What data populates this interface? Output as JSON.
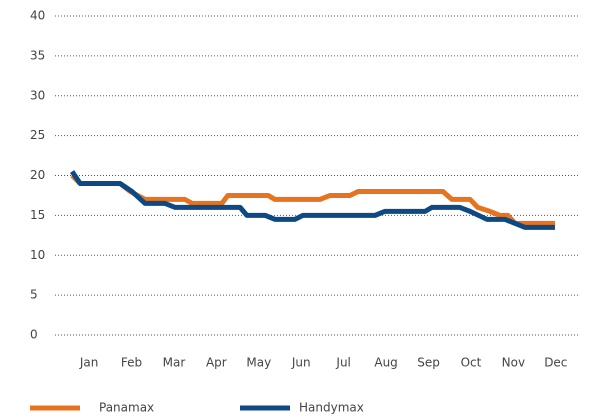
{
  "chart_data": {
    "type": "line",
    "xlim": [
      0.15,
      12.57
    ],
    "xticks": [
      {
        "value": 1,
        "label": "Jan"
      },
      {
        "value": 2,
        "label": "Feb"
      },
      {
        "value": 3,
        "label": "Mar"
      },
      {
        "value": 4,
        "label": "Apr"
      },
      {
        "value": 5,
        "label": "May"
      },
      {
        "value": 6,
        "label": "Jun"
      },
      {
        "value": 7,
        "label": "Jul"
      },
      {
        "value": 8,
        "label": "Aug"
      },
      {
        "value": 9,
        "label": "Sep"
      },
      {
        "value": 10,
        "label": "Oct"
      },
      {
        "value": 11,
        "label": "Nov"
      },
      {
        "value": 12,
        "label": "Dec"
      }
    ],
    "ylim": [
      0,
      40
    ],
    "yticks": [
      0,
      5,
      10,
      15,
      20,
      25,
      30,
      35,
      40
    ],
    "grid": true,
    "legend": "bottom",
    "series": [
      {
        "name": "Panamax",
        "color": "#e8731f",
        "x": [
          0.6,
          0.79,
          1.73,
          1.97,
          2.32,
          3.26,
          3.43,
          4.13,
          4.27,
          5.22,
          5.38,
          6.44,
          6.68,
          7.15,
          7.34,
          9.34,
          9.55,
          9.98,
          10.16,
          10.45,
          10.68,
          10.87,
          11.04,
          11.98
        ],
        "values": [
          20,
          19,
          19,
          18,
          17,
          17,
          16.5,
          16.5,
          17.5,
          17.5,
          17,
          17,
          17.5,
          17.5,
          18,
          18,
          17,
          17,
          16,
          15.5,
          15,
          15,
          14,
          14
        ]
      },
      {
        "name": "Handymax",
        "color": "#0d4a85",
        "x": [
          0.6,
          0.79,
          1.73,
          2.01,
          2.32,
          2.79,
          3.03,
          4.56,
          4.72,
          5.15,
          5.38,
          5.85,
          6.04,
          7.74,
          7.97,
          8.92,
          9.08,
          9.74,
          9.98,
          10.38,
          10.8,
          11.27,
          11.98
        ],
        "values": [
          20.5,
          19,
          19,
          18,
          16.5,
          16.5,
          16,
          16,
          15,
          15,
          14.5,
          14.5,
          15,
          15,
          15.5,
          15.5,
          16,
          16,
          15.5,
          14.5,
          14.5,
          13.5,
          13.5
        ]
      }
    ]
  }
}
